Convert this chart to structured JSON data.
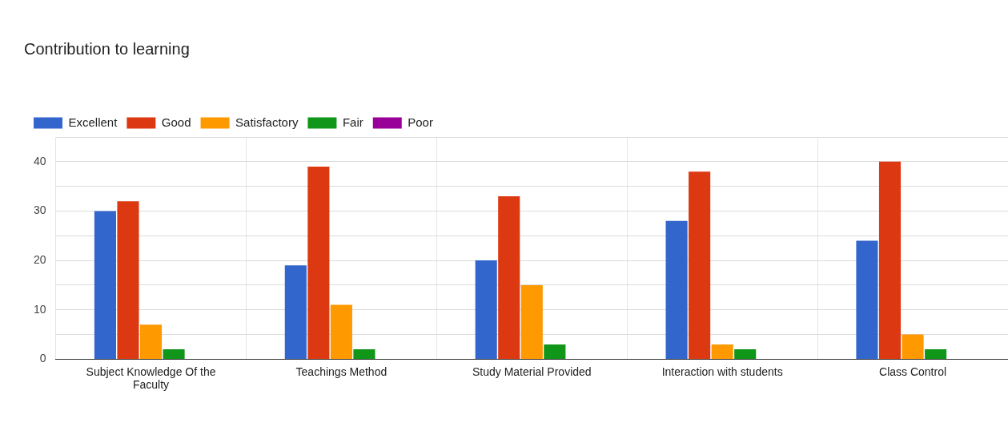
{
  "chart_data": {
    "type": "bar",
    "title": "Contribution to learning",
    "categories": [
      "Subject Knowledge Of the Faculty",
      "Teachings Method",
      "Study Material Provided",
      "Interaction with students",
      "Class Control"
    ],
    "series": [
      {
        "name": "Excellent",
        "color": "#3366cc",
        "values": [
          30,
          19,
          20,
          28,
          24
        ]
      },
      {
        "name": "Good",
        "color": "#dc3912",
        "values": [
          32,
          39,
          33,
          38,
          40
        ]
      },
      {
        "name": "Satisfactory",
        "color": "#ff9900",
        "values": [
          7,
          11,
          15,
          3,
          5
        ]
      },
      {
        "name": "Fair",
        "color": "#109618",
        "values": [
          2,
          2,
          3,
          2,
          2
        ]
      },
      {
        "name": "Poor",
        "color": "#990099",
        "values": [
          0,
          0,
          0,
          0,
          0
        ]
      }
    ],
    "ylim": [
      0,
      45
    ],
    "yticks": [
      0,
      {
        "value": 5,
        "label": null
      },
      10,
      {
        "value": 15,
        "label": null
      },
      20,
      {
        "value": 25,
        "label": null
      },
      30,
      {
        "value": 35,
        "label": null
      },
      40,
      {
        "value": 45,
        "label": null
      }
    ],
    "grid": true,
    "legend": "top left"
  }
}
